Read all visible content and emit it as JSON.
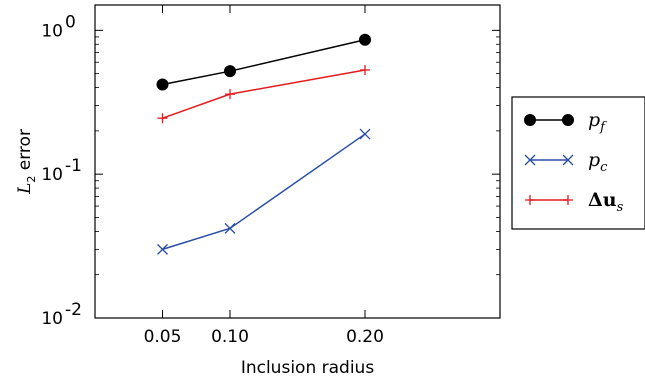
{
  "chart_data": {
    "type": "line",
    "xlabel": "Inclusion radius",
    "ylabel": "L2 error",
    "ylabel_main": "L",
    "ylabel_sub": "2",
    "ylabel_rest": " error",
    "y_scale": "log",
    "ylim": [
      0.01,
      1.5
    ],
    "xlim": [
      0.0,
      0.3
    ],
    "categories": [
      "0.05",
      "0.10",
      "0.20"
    ],
    "x": [
      0.05,
      0.1,
      0.2
    ],
    "x_ticks": [
      {
        "value": 0.05,
        "label": "0.05"
      },
      {
        "value": 0.1,
        "label": "0.10"
      },
      {
        "value": 0.2,
        "label": "0.20"
      }
    ],
    "y_ticks": [
      {
        "value": 1,
        "base": "10",
        "exp": "0"
      },
      {
        "value": 0.1,
        "base": "10",
        "exp": "-1"
      },
      {
        "value": 0.01,
        "base": "10",
        "exp": "-2"
      }
    ],
    "grid": false,
    "legend_position": "outside-right",
    "series": [
      {
        "name": "p_f",
        "label_main": "p",
        "label_sub": "f",
        "bold": false,
        "color": "#000000",
        "marker": "circle",
        "values": [
          0.42,
          0.52,
          0.86
        ]
      },
      {
        "name": "p_c",
        "label_main": "p",
        "label_sub": "c",
        "bold": false,
        "color": "#2b4fa8",
        "marker": "x",
        "values": [
          0.03,
          0.042,
          0.19
        ]
      },
      {
        "name": "Δu_s",
        "label_main": "Δu",
        "label_sub": "s",
        "bold": true,
        "color": "#e41a1c",
        "marker": "plus",
        "values": [
          0.245,
          0.36,
          0.53
        ]
      }
    ]
  }
}
